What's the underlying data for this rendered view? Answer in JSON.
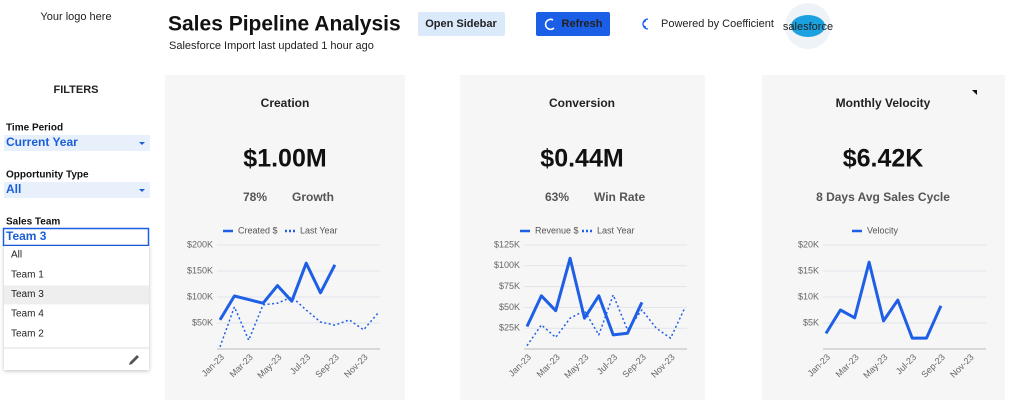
{
  "header": {
    "logo": "Your logo here",
    "title": "Sales Pipeline Analysis",
    "subtitle": "Salesforce Import last updated 1 hour ago",
    "open_sidebar": "Open Sidebar",
    "refresh": "Refresh",
    "powered_by": "Powered by Coefficient",
    "salesforce_logo": "salesforce"
  },
  "filters": {
    "heading": "FILTERS",
    "time_period": {
      "label": "Time Period",
      "value": "Current Year"
    },
    "opportunity_type": {
      "label": "Opportunity Type",
      "value": "All"
    },
    "sales_team": {
      "label": "Sales Team",
      "value": "Team 3",
      "options": [
        "All",
        "Team 1",
        "Team 3",
        "Team 4",
        "Team 2"
      ]
    }
  },
  "chart_data": [
    {
      "type": "line",
      "title": "Creation",
      "kpi": "$1.00M",
      "kpi_pct": "78%",
      "kpi_label": "Growth",
      "categories": [
        "Jan-23",
        null,
        "Mar-23",
        null,
        "May-23",
        null,
        "Jul-23",
        null,
        "Sep-23",
        null,
        "Nov-23",
        null
      ],
      "series": [
        {
          "name": "Created $",
          "color": "#1f5fe6",
          "dashed": false,
          "values": [
            56000,
            102000,
            95000,
            88000,
            122000,
            92000,
            165000,
            108000,
            162000,
            null,
            null,
            null
          ]
        },
        {
          "name": "Last Year",
          "color": "#1f5fe6",
          "dashed": true,
          "values": [
            4000,
            81000,
            17000,
            85000,
            88000,
            100000,
            75000,
            52000,
            46000,
            56000,
            37000,
            69000
          ]
        }
      ],
      "ylim": [
        0,
        200000
      ],
      "yticks": [
        {
          "value": 50000,
          "label": "$50K"
        },
        {
          "value": 100000,
          "label": "$100K"
        },
        {
          "value": 150000,
          "label": "$150K"
        },
        {
          "value": 200000,
          "label": "$200K"
        }
      ],
      "grid": true
    },
    {
      "type": "line",
      "title": "Conversion",
      "kpi": "$0.44M",
      "kpi_pct": "63%",
      "kpi_label": "Win Rate",
      "categories": [
        "Jan-23",
        null,
        "Mar-23",
        null,
        "May-23",
        null,
        "Jul-23",
        null,
        "Sep-23",
        null,
        "Nov-23",
        null
      ],
      "series": [
        {
          "name": "Revenue $",
          "color": "#1f5fe6",
          "dashed": false,
          "values": [
            27000,
            64000,
            46000,
            109000,
            37000,
            64000,
            17000,
            19000,
            56000,
            null,
            null,
            null
          ]
        },
        {
          "name": "Last Year",
          "color": "#1f5fe6",
          "dashed": true,
          "values": [
            4000,
            29000,
            14000,
            37000,
            46000,
            17000,
            65000,
            23000,
            47000,
            25000,
            13000,
            50000
          ]
        }
      ],
      "ylim": [
        0,
        125000
      ],
      "yticks": [
        {
          "value": 25000,
          "label": "$25K"
        },
        {
          "value": 50000,
          "label": "$50K"
        },
        {
          "value": 75000,
          "label": "$75K"
        },
        {
          "value": 100000,
          "label": "$100K"
        },
        {
          "value": 125000,
          "label": "$125K"
        }
      ],
      "grid": true
    },
    {
      "type": "line",
      "title": "Monthly Velocity",
      "kpi": "$6.42K",
      "kpi_label": "8 Days Avg Sales Cycle",
      "categories": [
        "Jan-23",
        null,
        "Mar-23",
        null,
        "May-23",
        null,
        "Jul-23",
        null,
        "Sep-23",
        null,
        "Nov-23",
        null
      ],
      "series": [
        {
          "name": "Velocity",
          "color": "#1f5fe6",
          "dashed": false,
          "values": [
            3000,
            7500,
            6000,
            16700,
            5400,
            9400,
            2100,
            2100,
            8300,
            null,
            null,
            null
          ]
        }
      ],
      "ylim": [
        0,
        20000
      ],
      "yticks": [
        {
          "value": 5000,
          "label": "$5K"
        },
        {
          "value": 10000,
          "label": "$10K"
        },
        {
          "value": 15000,
          "label": "$15K"
        },
        {
          "value": 20000,
          "label": "$20K"
        }
      ],
      "grid": true
    }
  ]
}
